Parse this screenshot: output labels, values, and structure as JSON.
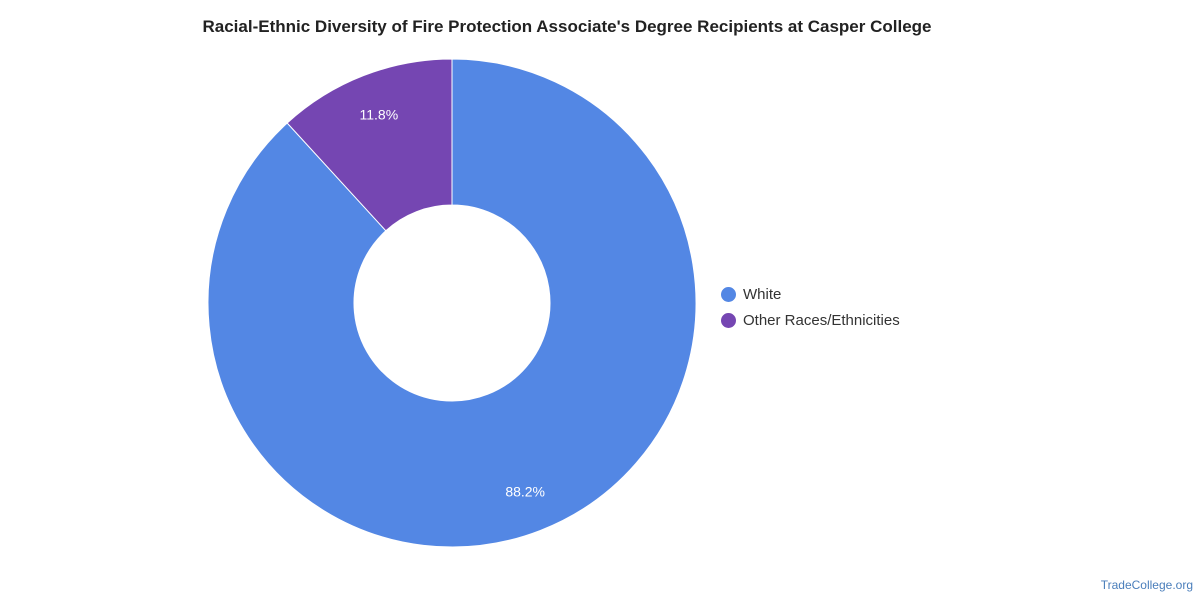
{
  "chart_data": {
    "type": "pie",
    "donut": true,
    "title": "Racial-Ethnic Diversity of Fire Protection Associate's Degree Recipients at Casper College",
    "unit": "%",
    "series": [
      {
        "name": "White",
        "value": 88.2,
        "label": "88.2%",
        "color": "#5387e4"
      },
      {
        "name": "Other Races/Ethnicities",
        "value": 11.8,
        "label": "11.8%",
        "color": "#7546b2"
      }
    ],
    "legend_position": "right"
  },
  "watermark": "TradeCollege.org"
}
